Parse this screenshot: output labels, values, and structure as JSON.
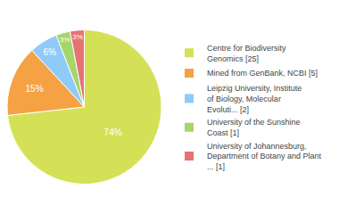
{
  "chart_data": {
    "type": "pie",
    "categories": [
      "Centre for Biodiversity\nGenomics [25]",
      "Mined from GenBank, NCBI [5]",
      "Leipzig University, Institute\nof Biology, Molecular\nEvoluti... [2]",
      "University of the Sunshine\nCoast [1]",
      "University of Johannesburg,\nDepartment of Botany and Plant\n... [1]"
    ],
    "values": [
      74,
      15,
      6,
      3,
      3
    ],
    "value_labels": [
      "74%",
      "15%",
      "6%",
      "3%",
      "3%"
    ],
    "colors": [
      "#d4e157",
      "#f4a244",
      "#90caf9",
      "#a5d66b",
      "#e57373"
    ],
    "data_labels": true,
    "legend": "right"
  }
}
